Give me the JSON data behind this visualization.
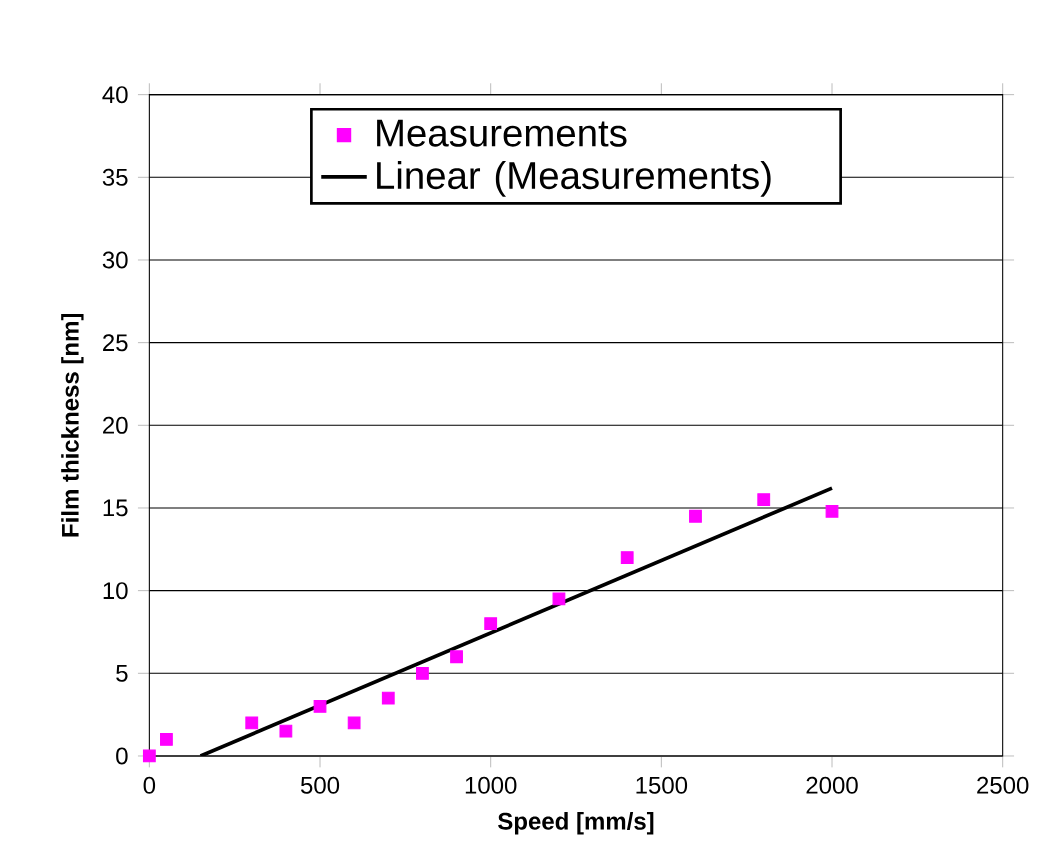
{
  "chart_data": {
    "type": "scatter",
    "xlabel": "Speed [mm/s]",
    "ylabel": "Film thickness [nm]",
    "xlim": [
      0,
      2500
    ],
    "xticks": [
      0,
      500,
      1000,
      1500,
      2000,
      2500
    ],
    "ylim": [
      0,
      40
    ],
    "yticks": [
      0,
      5,
      10,
      15,
      20,
      25,
      30,
      35,
      40
    ],
    "grid": "y",
    "legend": "top",
    "series": [
      {
        "name": "Measurements",
        "marker": "square",
        "color": "#ff00ff",
        "x": [
          0,
          50,
          300,
          400,
          500,
          600,
          700,
          800,
          900,
          1000,
          1200,
          1400,
          1600,
          1800,
          2000
        ],
        "values": [
          0,
          1,
          2,
          1.5,
          3,
          2,
          3.5,
          5,
          6,
          8,
          9.5,
          12,
          14.5,
          15.5,
          14.8
        ]
      },
      {
        "name": "Linear (Measurements)",
        "type": "line",
        "marker": "none",
        "color": "#000000",
        "x": [
          150,
          2000
        ],
        "values": [
          0,
          16.2
        ]
      }
    ]
  }
}
